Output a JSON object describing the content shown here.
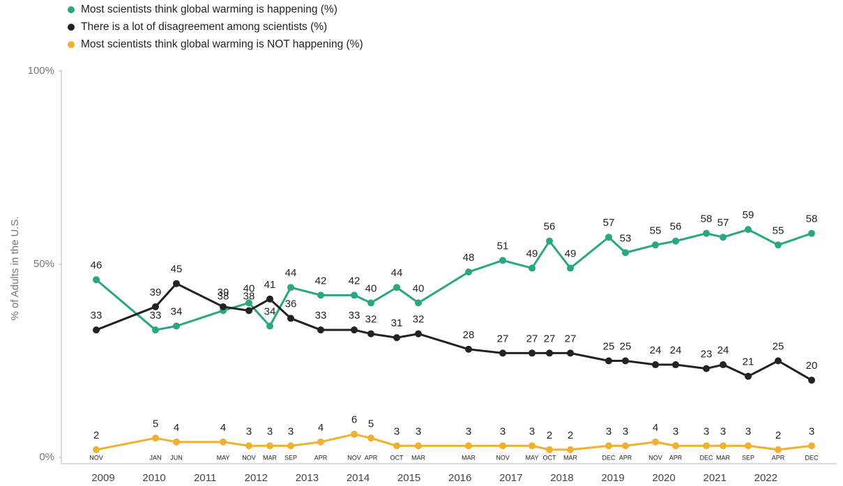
{
  "chart_data": {
    "type": "line",
    "y_label": "% of Adults in the U.S.",
    "categories": [
      "NOV",
      "JAN",
      "JUN",
      "MAY",
      "NOV",
      "MAR",
      "SEP",
      "APR",
      "NOV",
      "APR",
      "OCT",
      "MAR",
      "MAR",
      "NOV",
      "MAY",
      "OCT",
      "MAR",
      "DEC",
      "APR",
      "NOV",
      "APR",
      "DEC",
      "MAR",
      "SEP",
      "APR",
      "DEC"
    ],
    "years": [
      "2009",
      "2010",
      "2011",
      "2012",
      "2013",
      "2014",
      "2015",
      "2016",
      "2017",
      "2018",
      "2019",
      "2020",
      "2021",
      "2022"
    ],
    "series": [
      {
        "name": "Most scientists think global warming is happening (%)",
        "color": "#2aa683",
        "values": [
          46,
          33,
          34,
          38,
          40,
          34,
          44,
          42,
          42,
          40,
          44,
          40,
          48,
          51,
          49,
          56,
          49,
          57,
          53,
          55,
          56,
          58,
          57,
          59,
          55,
          58
        ]
      },
      {
        "name": "There is a lot of disagreement among scientists (%)",
        "color": "#222222",
        "values": [
          33,
          39,
          45,
          39,
          38,
          41,
          36,
          33,
          33,
          32,
          31,
          32,
          28,
          27,
          27,
          27,
          27,
          25,
          25,
          24,
          24,
          23,
          24,
          21,
          25,
          20
        ]
      },
      {
        "name": "Most scientists think global warming is NOT happening (%)",
        "color": "#f0b030",
        "values": [
          2,
          5,
          4,
          4,
          3,
          3,
          3,
          4,
          6,
          5,
          3,
          3,
          3,
          3,
          3,
          2,
          2,
          3,
          3,
          4,
          3,
          3,
          3,
          3,
          2,
          3
        ]
      }
    ],
    "ylim": [
      0,
      100
    ],
    "yticks": [
      {
        "value": 0,
        "label": "0%"
      },
      {
        "value": 50,
        "label": "50%"
      },
      {
        "value": 100,
        "label": "100%"
      }
    ]
  }
}
